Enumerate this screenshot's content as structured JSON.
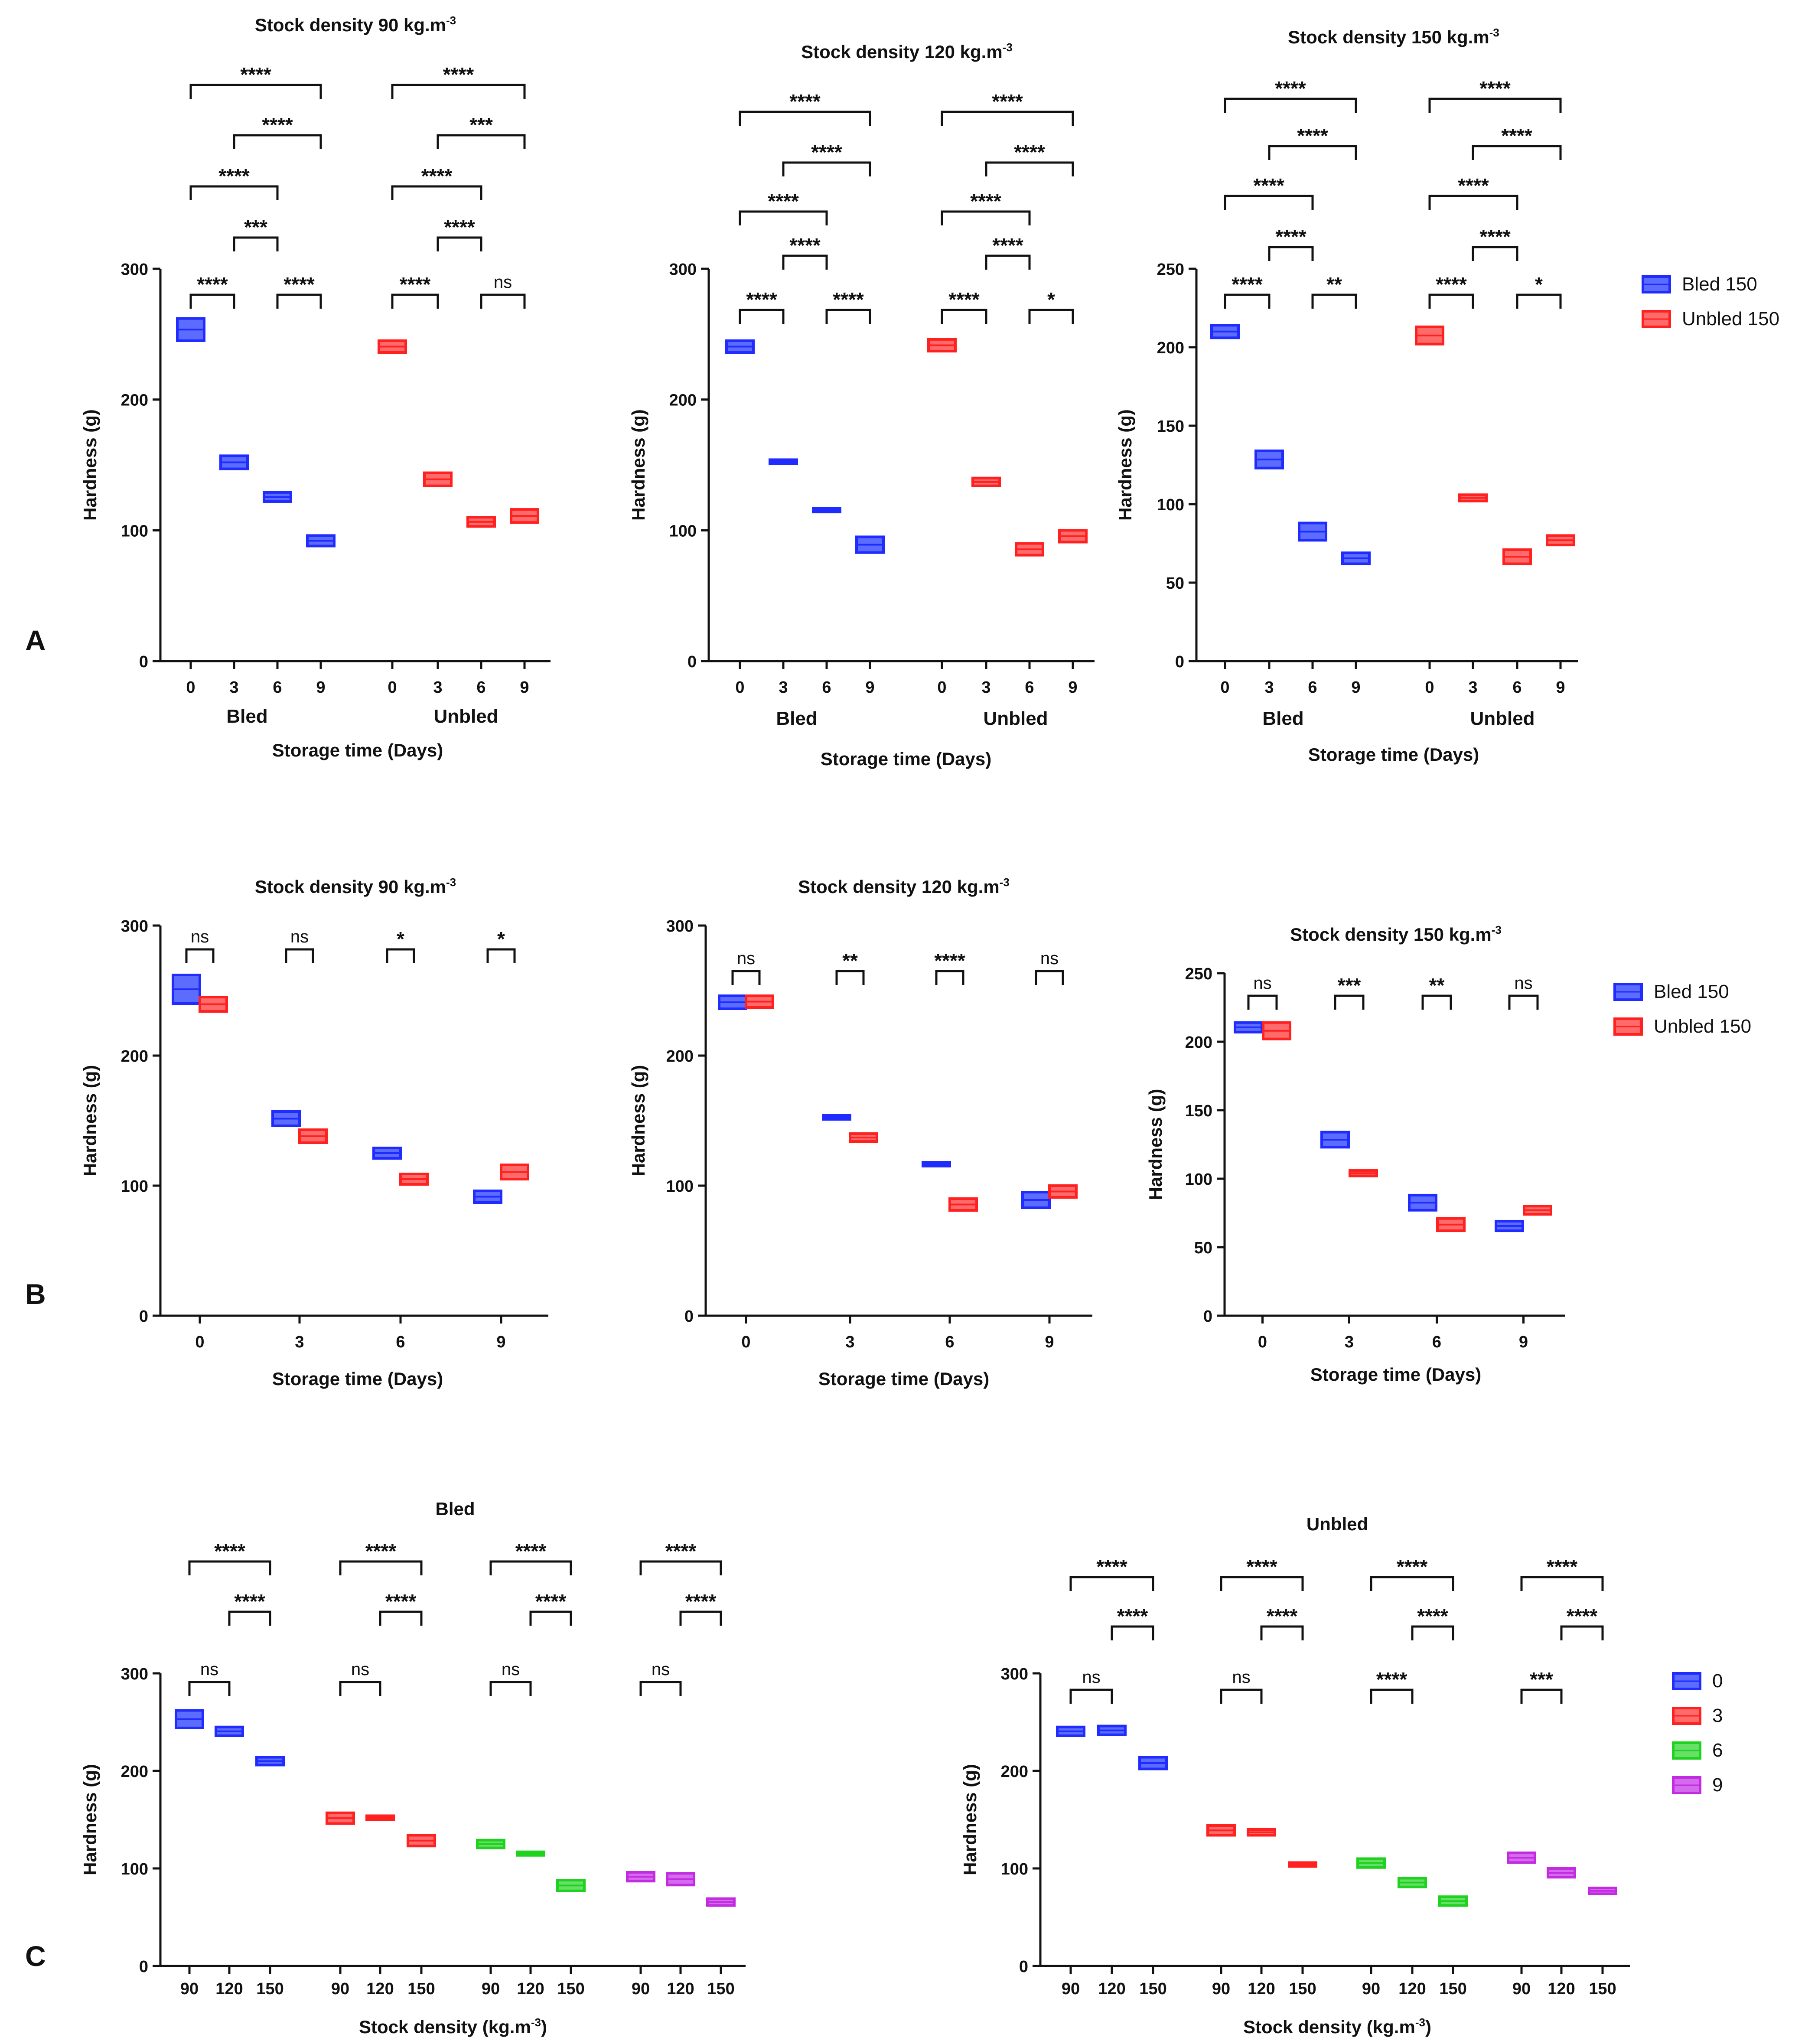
{
  "colors": {
    "blue": "#1f2bff",
    "blue_fill": "#5b6cff",
    "red": "#ff2020",
    "red_fill": "#ff6a6a",
    "green": "#1fd21f",
    "green_fill": "#66e066",
    "purple": "#c22be0",
    "purple_fill": "#d46aee",
    "axis": "#111111"
  },
  "panel_letters": [
    "A",
    "B",
    "C"
  ],
  "chart_data": [
    {
      "id": "A1",
      "panel": "A",
      "type": "floating-bar",
      "title": "Stock density 90 kg.m",
      "title_sup": "-3",
      "xlabel": "Storage time (Days)",
      "ylabel": "Hardness (g)",
      "ylim": [
        0,
        300
      ],
      "yticks": [
        0,
        100,
        200,
        300
      ],
      "groups": [
        "Bled",
        "Unbled"
      ],
      "categories": [
        0,
        3,
        6,
        9
      ],
      "series": [
        {
          "name": "Bled",
          "color": "blue",
          "bars": [
            [
              245,
              262
            ],
            [
              147,
              157
            ],
            [
              122,
              129
            ],
            [
              88,
              96
            ]
          ]
        },
        {
          "name": "Unbled",
          "color": "red",
          "bars": [
            [
              236,
              245
            ],
            [
              134,
              144
            ],
            [
              103,
              110
            ],
            [
              106,
              116
            ]
          ]
        }
      ],
      "comparisons": [
        {
          "group": 0,
          "from": 0,
          "to": 1,
          "label": "****"
        },
        {
          "group": 0,
          "from": 2,
          "to": 3,
          "label": "****"
        },
        {
          "group": 0,
          "from": 1,
          "to": 2,
          "label": "***"
        },
        {
          "group": 0,
          "from": 0,
          "to": 2,
          "label": "****"
        },
        {
          "group": 0,
          "from": 1,
          "to": 3,
          "label": "****"
        },
        {
          "group": 0,
          "from": 0,
          "to": 3,
          "label": "****"
        },
        {
          "group": 1,
          "from": 0,
          "to": 1,
          "label": "****"
        },
        {
          "group": 1,
          "from": 2,
          "to": 3,
          "label": "ns"
        },
        {
          "group": 1,
          "from": 1,
          "to": 2,
          "label": "****"
        },
        {
          "group": 1,
          "from": 0,
          "to": 2,
          "label": "****"
        },
        {
          "group": 1,
          "from": 1,
          "to": 3,
          "label": "***"
        },
        {
          "group": 1,
          "from": 0,
          "to": 3,
          "label": "****"
        }
      ]
    },
    {
      "id": "A2",
      "panel": "A",
      "type": "floating-bar",
      "title": "Stock density 120 kg.m",
      "title_sup": "-3",
      "xlabel": "Storage time (Days)",
      "ylabel": "Hardness (g)",
      "ylim": [
        0,
        300
      ],
      "yticks": [
        0,
        100,
        200,
        300
      ],
      "groups": [
        "Bled",
        "Unbled"
      ],
      "categories": [
        0,
        3,
        6,
        9
      ],
      "series": [
        {
          "name": "Bled",
          "color": "blue",
          "bars": [
            [
              236,
              245
            ],
            [
              151,
              154
            ],
            [
              114,
              117
            ],
            [
              83,
              95
            ]
          ]
        },
        {
          "name": "Unbled",
          "color": "red",
          "bars": [
            [
              237,
              246
            ],
            [
              134,
              140
            ],
            [
              81,
              90
            ],
            [
              91,
              100
            ]
          ]
        }
      ],
      "comparisons": [
        {
          "group": 0,
          "from": 0,
          "to": 1,
          "label": "****"
        },
        {
          "group": 0,
          "from": 2,
          "to": 3,
          "label": "****"
        },
        {
          "group": 0,
          "from": 1,
          "to": 2,
          "label": "****"
        },
        {
          "group": 0,
          "from": 0,
          "to": 2,
          "label": "****"
        },
        {
          "group": 0,
          "from": 1,
          "to": 3,
          "label": "****"
        },
        {
          "group": 0,
          "from": 0,
          "to": 3,
          "label": "****"
        },
        {
          "group": 1,
          "from": 0,
          "to": 1,
          "label": "****"
        },
        {
          "group": 1,
          "from": 2,
          "to": 3,
          "label": "*"
        },
        {
          "group": 1,
          "from": 1,
          "to": 2,
          "label": "****"
        },
        {
          "group": 1,
          "from": 0,
          "to": 2,
          "label": "****"
        },
        {
          "group": 1,
          "from": 1,
          "to": 3,
          "label": "****"
        },
        {
          "group": 1,
          "from": 0,
          "to": 3,
          "label": "****"
        }
      ]
    },
    {
      "id": "A3",
      "panel": "A",
      "type": "floating-bar",
      "title": "Stock density 150 kg.m",
      "title_sup": "-3",
      "xlabel": "Storage time (Days)",
      "ylabel": "Hardness (g)",
      "ylim": [
        0,
        250
      ],
      "yticks": [
        0,
        50,
        100,
        150,
        200,
        250
      ],
      "groups": [
        "Bled",
        "Unbled"
      ],
      "categories": [
        0,
        3,
        6,
        9
      ],
      "series": [
        {
          "name": "Bled",
          "color": "blue",
          "bars": [
            [
              206,
              214
            ],
            [
              123,
              134
            ],
            [
              77,
              88
            ],
            [
              62,
              69
            ]
          ]
        },
        {
          "name": "Unbled",
          "color": "red",
          "bars": [
            [
              202,
              213
            ],
            [
              102,
              106
            ],
            [
              62,
              71
            ],
            [
              74,
              80
            ]
          ]
        }
      ],
      "legend": [
        "Bled 150",
        "Unbled 150"
      ],
      "comparisons": [
        {
          "group": 0,
          "from": 0,
          "to": 1,
          "label": "****"
        },
        {
          "group": 0,
          "from": 2,
          "to": 3,
          "label": "**"
        },
        {
          "group": 0,
          "from": 1,
          "to": 2,
          "label": "****"
        },
        {
          "group": 0,
          "from": 0,
          "to": 2,
          "label": "****"
        },
        {
          "group": 0,
          "from": 1,
          "to": 3,
          "label": "****"
        },
        {
          "group": 0,
          "from": 0,
          "to": 3,
          "label": "****"
        },
        {
          "group": 1,
          "from": 0,
          "to": 1,
          "label": "****"
        },
        {
          "group": 1,
          "from": 2,
          "to": 3,
          "label": "*"
        },
        {
          "group": 1,
          "from": 1,
          "to": 2,
          "label": "****"
        },
        {
          "group": 1,
          "from": 0,
          "to": 2,
          "label": "****"
        },
        {
          "group": 1,
          "from": 1,
          "to": 3,
          "label": "****"
        },
        {
          "group": 1,
          "from": 0,
          "to": 3,
          "label": "****"
        }
      ]
    },
    {
      "id": "B1",
      "panel": "B",
      "type": "floating-bar",
      "title": "Stock density 90 kg.m",
      "title_sup": "-3",
      "xlabel": "Storage time (Days)",
      "ylabel": "Hardness (g)",
      "ylim": [
        0,
        300
      ],
      "yticks": [
        0,
        100,
        200,
        300
      ],
      "categories": [
        0,
        3,
        6,
        9
      ],
      "series": [
        {
          "name": "Bled 150",
          "color": "blue",
          "bars": [
            [
              240,
              262
            ],
            [
              146,
              157
            ],
            [
              121,
              129
            ],
            [
              87,
              96
            ]
          ]
        },
        {
          "name": "Unbled 150",
          "color": "red",
          "bars": [
            [
              234,
              245
            ],
            [
              133,
              143
            ],
            [
              101,
              109
            ],
            [
              105,
              116
            ]
          ]
        }
      ],
      "comparisons": [
        "ns",
        "ns",
        "*",
        "*"
      ]
    },
    {
      "id": "B2",
      "panel": "B",
      "type": "floating-bar",
      "title": "Stock density 120 kg.m",
      "title_sup": "-3",
      "xlabel": "Storage time (Days)",
      "ylabel": "Hardness (g)",
      "ylim": [
        0,
        300
      ],
      "yticks": [
        0,
        100,
        200,
        300
      ],
      "categories": [
        0,
        3,
        6,
        9
      ],
      "series": [
        {
          "name": "Bled 150",
          "color": "blue",
          "bars": [
            [
              236,
              246
            ],
            [
              151,
              154
            ],
            [
              115,
              118
            ],
            [
              83,
              95
            ]
          ]
        },
        {
          "name": "Unbled 150",
          "color": "red",
          "bars": [
            [
              237,
              246
            ],
            [
              134,
              140
            ],
            [
              81,
              90
            ],
            [
              91,
              100
            ]
          ]
        }
      ],
      "comparisons": [
        "ns",
        "**",
        "****",
        "ns"
      ]
    },
    {
      "id": "B3",
      "panel": "B",
      "type": "floating-bar",
      "title": "Stock density 150 kg.m",
      "title_sup": "-3",
      "xlabel": "Storage time (Days)",
      "ylabel": "Hardness (g)",
      "ylim": [
        0,
        250
      ],
      "yticks": [
        0,
        50,
        100,
        150,
        200,
        250
      ],
      "categories": [
        0,
        3,
        6,
        9
      ],
      "series": [
        {
          "name": "Bled 150",
          "color": "blue",
          "bars": [
            [
              207,
              214
            ],
            [
              123,
              134
            ],
            [
              77,
              88
            ],
            [
              62,
              69
            ]
          ]
        },
        {
          "name": "Unbled 150",
          "color": "red",
          "bars": [
            [
              202,
              214
            ],
            [
              102,
              106
            ],
            [
              62,
              71
            ],
            [
              74,
              80
            ]
          ]
        }
      ],
      "legend": [
        "Bled 150",
        "Unbled 150"
      ],
      "comparisons": [
        "ns",
        "***",
        "**",
        "ns"
      ]
    },
    {
      "id": "C1",
      "panel": "C",
      "type": "floating-bar",
      "title": "Bled",
      "xlabel": "Stock density (kg.m",
      "xlabel_sup": "-3",
      "xlabel_end": ")",
      "ylabel": "Hardness (g)",
      "ylim": [
        0,
        300
      ],
      "yticks": [
        0,
        100,
        200,
        300
      ],
      "categories": [
        90,
        120,
        150
      ],
      "series": [
        {
          "name": "0",
          "color": "blue",
          "bars": [
            [
              244,
              262
            ],
            [
              236,
              245
            ],
            [
              206,
              214
            ]
          ]
        },
        {
          "name": "3",
          "color": "red",
          "bars": [
            [
              146,
              157
            ],
            [
              150,
              154
            ],
            [
              123,
              134
            ]
          ]
        },
        {
          "name": "6",
          "color": "green",
          "bars": [
            [
              121,
              129
            ],
            [
              114,
              117
            ],
            [
              77,
              88
            ]
          ]
        },
        {
          "name": "9",
          "color": "purple",
          "bars": [
            [
              87,
              96
            ],
            [
              83,
              95
            ],
            [
              62,
              69
            ]
          ]
        }
      ],
      "comparisons": [
        {
          "from": 0,
          "to": 1,
          "label": "ns"
        },
        {
          "from": 1,
          "to": 2,
          "label": "****"
        },
        {
          "from": 0,
          "to": 2,
          "label": "****"
        }
      ]
    },
    {
      "id": "C2",
      "panel": "C",
      "type": "floating-bar",
      "title": "Unbled",
      "xlabel": "Stock density (kg.m",
      "xlabel_sup": "-3",
      "xlabel_end": ")",
      "ylabel": "Hardness (g)",
      "ylim": [
        0,
        300
      ],
      "yticks": [
        0,
        100,
        200,
        300
      ],
      "categories": [
        90,
        120,
        150
      ],
      "series": [
        {
          "name": "0",
          "color": "blue",
          "bars": [
            [
              236,
              245
            ],
            [
              237,
              246
            ],
            [
              202,
              214
            ]
          ]
        },
        {
          "name": "3",
          "color": "red",
          "bars": [
            [
              134,
              144
            ],
            [
              134,
              140
            ],
            [
              102,
              106
            ]
          ]
        },
        {
          "name": "6",
          "color": "green",
          "bars": [
            [
              101,
              110
            ],
            [
              81,
              90
            ],
            [
              62,
              71
            ]
          ]
        },
        {
          "name": "9",
          "color": "purple",
          "bars": [
            [
              106,
              116
            ],
            [
              91,
              100
            ],
            [
              74,
              80
            ]
          ]
        }
      ],
      "legend": [
        "0",
        "3",
        "6",
        "9"
      ],
      "comparisons_per_group": [
        [
          "ns",
          "****",
          "****"
        ],
        [
          "ns",
          "****",
          "****"
        ],
        [
          "****",
          "****",
          "****"
        ],
        [
          "***",
          "****",
          "****"
        ]
      ],
      "comparisons": [
        {
          "from": 0,
          "to": 1,
          "label": "ns"
        },
        {
          "from": 1,
          "to": 2,
          "label": "****"
        },
        {
          "from": 0,
          "to": 2,
          "label": "****"
        }
      ]
    }
  ]
}
